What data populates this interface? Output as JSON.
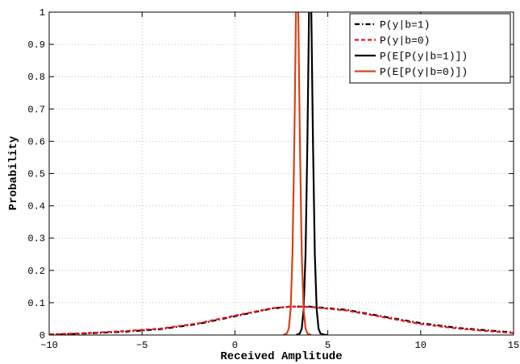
{
  "chart_data": {
    "type": "line",
    "xlabel": "Received Amplitude",
    "ylabel": "Probability",
    "xlim": [
      -10,
      15
    ],
    "ylim": [
      0,
      1
    ],
    "xticks": [
      -10,
      -5,
      0,
      5,
      10,
      15
    ],
    "xtick_labels": [
      "−10",
      "−5",
      "0",
      "5",
      "10",
      "15"
    ],
    "yticks": [
      0,
      0.1,
      0.2,
      0.3,
      0.4,
      0.5,
      0.6,
      0.7,
      0.8,
      0.9,
      1
    ],
    "ytick_labels": [
      "0",
      "0.1",
      "0.2",
      "0.3",
      "0.4",
      "0.5",
      "0.6",
      "0.7",
      "0.8",
      "0.9",
      "1"
    ],
    "grid": true,
    "legend_position": "top-right",
    "series": [
      {
        "name": "P(y|b=1)",
        "color": "#000000",
        "dash": "dashdot",
        "x": [
          -10,
          -8,
          -6,
          -4,
          -2,
          0,
          2,
          3,
          4,
          6,
          8,
          10,
          12,
          15
        ],
        "y": [
          0.001,
          0.005,
          0.01,
          0.018,
          0.034,
          0.058,
          0.082,
          0.088,
          0.088,
          0.078,
          0.057,
          0.037,
          0.022,
          0.008
        ]
      },
      {
        "name": "P(y|b=0)",
        "color": "#e8141c",
        "dash": "dashed",
        "x": [
          -10,
          -8,
          -6,
          -4,
          -2,
          0,
          2,
          3,
          4,
          6,
          8,
          10,
          12,
          15
        ],
        "y": [
          0.002,
          0.006,
          0.012,
          0.02,
          0.036,
          0.06,
          0.083,
          0.088,
          0.087,
          0.076,
          0.055,
          0.034,
          0.02,
          0.006
        ]
      },
      {
        "name": "P(E[P(y|b=1)])",
        "color": "#000000",
        "dash": "solid",
        "x": [
          3.3,
          3.5,
          3.6,
          3.7,
          3.8,
          3.9,
          4.0,
          4.1,
          4.2,
          4.3,
          4.4,
          4.5,
          4.6,
          4.8,
          5.0
        ],
        "y": [
          0.0,
          0.005,
          0.02,
          0.08,
          0.25,
          0.6,
          1.05,
          1.05,
          0.6,
          0.25,
          0.08,
          0.02,
          0.005,
          0.001,
          0.0
        ]
      },
      {
        "name": "P(E[P(y|b=0)])",
        "color": "#d4441c",
        "dash": "solid",
        "x": [
          2.6,
          2.8,
          2.9,
          3.0,
          3.1,
          3.2,
          3.3,
          3.4,
          3.5,
          3.6,
          3.7,
          3.8,
          3.9,
          4.1
        ],
        "y": [
          0.0,
          0.005,
          0.02,
          0.08,
          0.25,
          0.6,
          1.05,
          1.05,
          0.6,
          0.25,
          0.08,
          0.02,
          0.005,
          0.0
        ]
      }
    ]
  }
}
